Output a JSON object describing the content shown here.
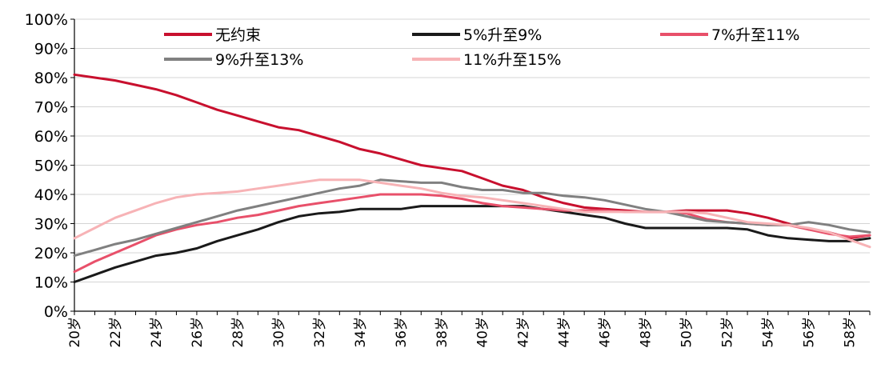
{
  "chart_data": {
    "type": "line",
    "title": "",
    "xlabel": "",
    "ylabel": "",
    "ylim": [
      0,
      100
    ],
    "yticks": [
      "0%",
      "10%",
      "20%",
      "30%",
      "40%",
      "50%",
      "60%",
      "70%",
      "80%",
      "90%",
      "100%"
    ],
    "grid": true,
    "legend_position": "top",
    "categories": [
      "20岁",
      "21岁",
      "22岁",
      "23岁",
      "24岁",
      "25岁",
      "26岁",
      "27岁",
      "28岁",
      "29岁",
      "30岁",
      "31岁",
      "32岁",
      "33岁",
      "34岁",
      "35岁",
      "36岁",
      "37岁",
      "38岁",
      "39岁",
      "40岁",
      "41岁",
      "42岁",
      "43岁",
      "44岁",
      "45岁",
      "46岁",
      "47岁",
      "48岁",
      "49岁",
      "50岁",
      "51岁",
      "52岁",
      "53岁",
      "54岁",
      "55岁",
      "56岁",
      "57岁",
      "58岁",
      "59岁"
    ],
    "xtick_labels": [
      "20岁",
      "22岁",
      "24岁",
      "26岁",
      "28岁",
      "30岁",
      "32岁",
      "34岁",
      "36岁",
      "38岁",
      "40岁",
      "42岁",
      "44岁",
      "46岁",
      "48岁",
      "50岁",
      "52岁",
      "54岁",
      "56岁",
      "58岁"
    ],
    "series": [
      {
        "name": "无约束",
        "color": "#c8102e",
        "values": [
          81,
          80,
          79,
          77.5,
          76,
          74,
          71.5,
          69,
          67,
          65,
          63,
          62,
          60,
          58,
          55.5,
          54,
          52,
          50,
          49,
          48,
          45.5,
          43,
          41.5,
          39,
          37,
          35.5,
          35,
          34.5,
          34,
          34,
          34.5,
          34.5,
          34.5,
          33.5,
          32,
          30,
          28,
          27,
          25,
          26
        ]
      },
      {
        "name": "5%升至9%",
        "color": "#1a1a1a",
        "values": [
          10,
          12.5,
          15,
          17,
          19,
          20,
          21.5,
          24,
          26,
          28,
          30.5,
          32.5,
          33.5,
          34,
          35,
          35,
          35,
          36,
          36,
          36,
          36,
          36,
          36,
          35,
          34,
          33,
          32,
          30,
          28.5,
          28.5,
          28.5,
          28.5,
          28.5,
          28,
          26,
          25,
          24.5,
          24,
          24,
          25
        ]
      },
      {
        "name": "7%升至11%",
        "color": "#e8506a",
        "values": [
          13.5,
          17,
          20,
          23,
          26,
          28,
          29.5,
          30.5,
          32,
          33,
          34.5,
          36,
          37,
          38,
          39,
          40,
          40,
          40,
          39.5,
          38.5,
          37,
          36,
          35.5,
          35,
          34.5,
          34.5,
          34.5,
          34,
          34,
          34,
          33.5,
          31.5,
          30.5,
          30,
          29.5,
          29.5,
          28,
          26.5,
          25.5,
          26
        ]
      },
      {
        "name": "9%升至13%",
        "color": "#808080",
        "values": [
          19,
          21,
          23,
          24.5,
          26.5,
          28.5,
          30.5,
          32.5,
          34.5,
          36,
          37.5,
          39,
          40.5,
          42,
          43,
          45,
          44.5,
          44,
          44,
          42.5,
          41.5,
          41.5,
          40.5,
          40.5,
          39.5,
          39,
          38,
          36.5,
          35,
          34,
          32.5,
          31,
          30.5,
          30,
          29.5,
          29.5,
          30.5,
          29.5,
          28,
          27
        ]
      },
      {
        "name": "11%升至15%",
        "color": "#f7b3b6",
        "values": [
          25,
          28.5,
          32,
          34.5,
          37,
          39,
          40,
          40.5,
          41,
          42,
          43,
          44,
          45,
          45,
          45,
          44,
          43,
          42,
          40.5,
          39.5,
          39,
          38,
          37,
          36,
          35,
          34,
          34,
          34,
          34,
          34,
          34,
          33.5,
          32,
          30.5,
          30,
          29.5,
          28.5,
          27,
          24.5,
          22
        ]
      }
    ]
  }
}
